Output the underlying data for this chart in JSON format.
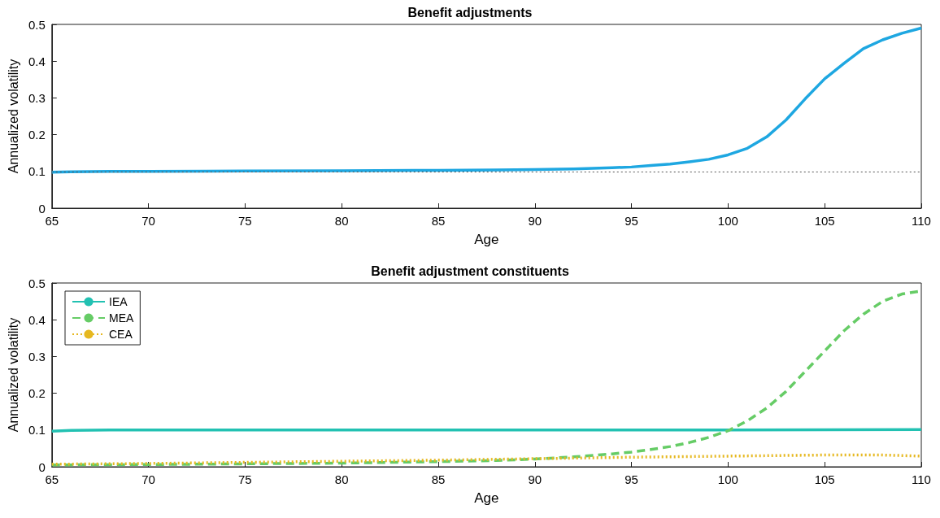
{
  "chart_data": [
    {
      "type": "line",
      "title": "Benefit adjustments",
      "xlabel": "Age",
      "ylabel": "Annualized volatility",
      "xlim": [
        65,
        110
      ],
      "xticks": [
        65,
        70,
        75,
        80,
        85,
        90,
        95,
        100,
        105,
        110
      ],
      "ylim": [
        0,
        0.5
      ],
      "yticks": [
        0,
        0.1,
        0.2,
        0.3,
        0.4,
        0.5
      ],
      "grid": false,
      "legend": false,
      "marker": "none",
      "ref_lines": [
        {
          "axis": "y",
          "value": 0.1,
          "color": "#555555",
          "line_style": "dotted"
        }
      ],
      "series": [
        {
          "color": "#1ea7e1",
          "line_style": "solid",
          "x": [
            65,
            66,
            68,
            70,
            75,
            80,
            85,
            88,
            90,
            92,
            94,
            95,
            96,
            97,
            98,
            99,
            100,
            101,
            102,
            103,
            104,
            105,
            106,
            107,
            108,
            109,
            110
          ],
          "values": [
            0.098,
            0.099,
            0.1,
            0.1,
            0.101,
            0.102,
            0.103,
            0.104,
            0.105,
            0.107,
            0.11,
            0.112,
            0.116,
            0.12,
            0.126,
            0.133,
            0.145,
            0.163,
            0.194,
            0.24,
            0.298,
            0.352,
            0.394,
            0.434,
            0.458,
            0.476,
            0.49
          ]
        }
      ]
    },
    {
      "type": "line",
      "title": "Benefit adjustment constituents",
      "xlabel": "Age",
      "ylabel": "Annualized volatility",
      "xlim": [
        65,
        110
      ],
      "xticks": [
        65,
        70,
        75,
        80,
        85,
        90,
        95,
        100,
        105,
        110
      ],
      "ylim": [
        0,
        0.5
      ],
      "yticks": [
        0,
        0.1,
        0.2,
        0.3,
        0.4,
        0.5
      ],
      "grid": false,
      "legend": "top left",
      "marker": "none",
      "series": [
        {
          "name": "IEA",
          "color": "#22c1b2",
          "line_style": "solid",
          "x": [
            65,
            66,
            68,
            70,
            80,
            90,
            100,
            110
          ],
          "values": [
            0.097,
            0.099,
            0.1,
            0.1,
            0.1,
            0.1,
            0.1,
            0.101
          ]
        },
        {
          "name": "MEA",
          "color": "#66cc66",
          "line_style": "dashed",
          "x": [
            65,
            70,
            75,
            80,
            85,
            88,
            90,
            92,
            94,
            95,
            96,
            97,
            98,
            99,
            100,
            101,
            102,
            103,
            104,
            105,
            106,
            107,
            108,
            109,
            110
          ],
          "values": [
            0.005,
            0.006,
            0.008,
            0.01,
            0.014,
            0.017,
            0.021,
            0.027,
            0.035,
            0.04,
            0.047,
            0.055,
            0.066,
            0.08,
            0.098,
            0.125,
            0.16,
            0.205,
            0.26,
            0.315,
            0.37,
            0.415,
            0.45,
            0.47,
            0.478
          ]
        },
        {
          "name": "CEA",
          "color": "#e6b820",
          "line_style": "dotted",
          "x": [
            65,
            70,
            75,
            80,
            85,
            90,
            95,
            100,
            105,
            108,
            110
          ],
          "values": [
            0.007,
            0.009,
            0.012,
            0.015,
            0.018,
            0.022,
            0.026,
            0.029,
            0.032,
            0.032,
            0.029
          ]
        }
      ]
    }
  ]
}
